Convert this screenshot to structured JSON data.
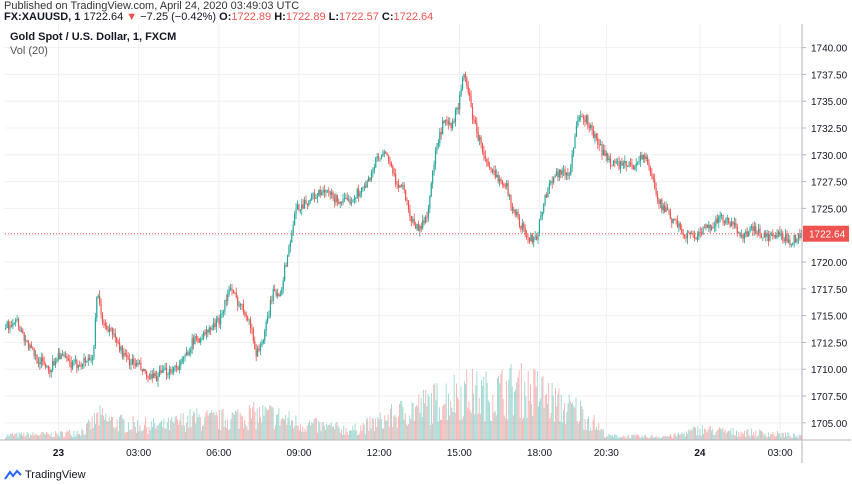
{
  "header": {
    "published": "Published on TradingView.com, April 24, 2020 03:49:03 UTC",
    "symbol": "FX:XAUUSD, 1",
    "last": "1722.64",
    "change_arrow": "▼",
    "change": "−7.25 (−0.42%)",
    "o_label": "O:",
    "o_value": "1722.89",
    "h_label": "H:",
    "h_value": "1722.89",
    "l_label": "L:",
    "l_value": "1722.57",
    "c_label": "C:",
    "c_value": "1722.64"
  },
  "legend": {
    "title": "Gold Spot / U.S. Dollar, 1, FXCM",
    "volume": "Vol (20)"
  },
  "footer": {
    "brand": "TradingView",
    "logo_icon": "tradingview-logo-icon"
  },
  "colors": {
    "up": "#26a69a",
    "down": "#ef5350",
    "grid": "#eef0f3",
    "axis": "#b2b5be",
    "price_line": "#ef5350"
  },
  "chart_data": {
    "type": "candlestick",
    "title": "Gold Spot / U.S. Dollar, 1, FXCM",
    "ylim": [
      1703.4,
      1742.2
    ],
    "y_ticks": [
      1705.0,
      1707.5,
      1710.0,
      1712.5,
      1715.0,
      1717.5,
      1720.0,
      1722.5,
      1725.0,
      1727.5,
      1730.0,
      1732.5,
      1735.0,
      1737.5,
      1740.0
    ],
    "y_tick_labels": [
      "1705.00",
      "1707.50",
      "1710.00",
      "1712.50",
      "1715.00",
      "1717.50",
      "1720.00",
      "1722.50",
      "1725.00",
      "1727.50",
      "1730.00",
      "1732.50",
      "1735.00",
      "1737.50",
      "1740.00"
    ],
    "x_tick_labels": [
      "23",
      "03:00",
      "06:00",
      "09:00",
      "12:00",
      "15:00",
      "18:00",
      "20:30",
      "24",
      "03:00"
    ],
    "x_tick_hours": [
      0,
      3,
      6,
      9,
      12,
      15,
      18,
      20.5,
      24,
      27
    ],
    "x_tick_bold": [
      true,
      false,
      false,
      false,
      false,
      false,
      false,
      false,
      true,
      false
    ],
    "xlim_hours": [
      -2.0,
      27.82
    ],
    "last_price": 1722.64,
    "last_price_label": "1722.64",
    "price_path": [
      [
        -2.0,
        1713.8
      ],
      [
        -1.6,
        1714.8
      ],
      [
        -1.2,
        1712.5
      ],
      [
        -0.8,
        1711.0
      ],
      [
        -0.3,
        1710.0
      ],
      [
        0.0,
        1711.5
      ],
      [
        0.5,
        1710.3
      ],
      [
        1.0,
        1710.8
      ],
      [
        1.3,
        1711.2
      ],
      [
        1.45,
        1717.0
      ],
      [
        1.7,
        1714.0
      ],
      [
        2.0,
        1713.5
      ],
      [
        2.5,
        1711.0
      ],
      [
        3.0,
        1710.3
      ],
      [
        3.4,
        1709.0
      ],
      [
        3.8,
        1709.5
      ],
      [
        4.2,
        1710.0
      ],
      [
        4.6,
        1710.5
      ],
      [
        5.0,
        1712.5
      ],
      [
        5.5,
        1713.3
      ],
      [
        6.0,
        1714.5
      ],
      [
        6.4,
        1717.5
      ],
      [
        6.8,
        1716.0
      ],
      [
        7.1,
        1715.0
      ],
      [
        7.4,
        1711.5
      ],
      [
        7.7,
        1713.0
      ],
      [
        8.0,
        1717.0
      ],
      [
        8.3,
        1717.2
      ],
      [
        8.6,
        1721.0
      ],
      [
        8.9,
        1725.0
      ],
      [
        9.2,
        1725.5
      ],
      [
        9.6,
        1726.2
      ],
      [
        10.0,
        1726.5
      ],
      [
        10.4,
        1725.8
      ],
      [
        10.8,
        1725.5
      ],
      [
        11.2,
        1726.5
      ],
      [
        11.5,
        1727.0
      ],
      [
        11.9,
        1729.5
      ],
      [
        12.3,
        1730.0
      ],
      [
        12.6,
        1727.5
      ],
      [
        12.9,
        1727.0
      ],
      [
        13.2,
        1724.0
      ],
      [
        13.5,
        1723.0
      ],
      [
        13.8,
        1724.5
      ],
      [
        14.1,
        1730.0
      ],
      [
        14.4,
        1733.0
      ],
      [
        14.7,
        1732.5
      ],
      [
        15.0,
        1735.0
      ],
      [
        15.2,
        1737.8
      ],
      [
        15.5,
        1733.5
      ],
      [
        15.8,
        1731.0
      ],
      [
        16.1,
        1728.5
      ],
      [
        16.4,
        1728.0
      ],
      [
        16.7,
        1727.5
      ],
      [
        17.0,
        1725.0
      ],
      [
        17.3,
        1723.5
      ],
      [
        17.6,
        1722.0
      ],
      [
        17.9,
        1722.5
      ],
      [
        18.2,
        1726.0
      ],
      [
        18.5,
        1728.0
      ],
      [
        18.8,
        1728.5
      ],
      [
        19.1,
        1728.0
      ],
      [
        19.4,
        1733.0
      ],
      [
        19.7,
        1733.5
      ],
      [
        20.0,
        1732.0
      ],
      [
        20.3,
        1730.5
      ],
      [
        20.6,
        1729.5
      ],
      [
        21.0,
        1729.0
      ],
      [
        21.5,
        1729.0
      ],
      [
        21.9,
        1730.0
      ],
      [
        22.2,
        1728.0
      ],
      [
        22.5,
        1725.5
      ],
      [
        22.8,
        1724.5
      ],
      [
        23.1,
        1723.5
      ],
      [
        23.5,
        1722.5
      ],
      [
        24.0,
        1722.5
      ],
      [
        24.4,
        1723.5
      ],
      [
        24.8,
        1724.0
      ],
      [
        25.2,
        1723.5
      ],
      [
        25.6,
        1722.5
      ],
      [
        26.0,
        1723.0
      ],
      [
        26.5,
        1722.3
      ],
      [
        27.0,
        1722.5
      ],
      [
        27.4,
        1722.0
      ],
      [
        27.82,
        1722.64
      ]
    ],
    "volume_profile": [
      [
        -2.0,
        0.06
      ],
      [
        0.0,
        0.07
      ],
      [
        1.0,
        0.12
      ],
      [
        1.5,
        0.28
      ],
      [
        2.0,
        0.22
      ],
      [
        3.0,
        0.18
      ],
      [
        4.0,
        0.17
      ],
      [
        5.0,
        0.26
      ],
      [
        6.0,
        0.24
      ],
      [
        7.0,
        0.3
      ],
      [
        8.0,
        0.3
      ],
      [
        9.0,
        0.2
      ],
      [
        10.0,
        0.16
      ],
      [
        11.0,
        0.12
      ],
      [
        12.0,
        0.22
      ],
      [
        13.0,
        0.35
      ],
      [
        14.0,
        0.45
      ],
      [
        15.0,
        0.58
      ],
      [
        16.0,
        0.55
      ],
      [
        17.0,
        0.62
      ],
      [
        18.0,
        0.58
      ],
      [
        18.8,
        0.4
      ],
      [
        19.5,
        0.35
      ],
      [
        20.2,
        0.16
      ],
      [
        20.5,
        0.05
      ],
      [
        22.0,
        0.04
      ],
      [
        23.0,
        0.05
      ],
      [
        24.0,
        0.13
      ],
      [
        25.0,
        0.1
      ],
      [
        26.0,
        0.09
      ],
      [
        27.0,
        0.07
      ],
      [
        27.82,
        0.04
      ]
    ]
  }
}
